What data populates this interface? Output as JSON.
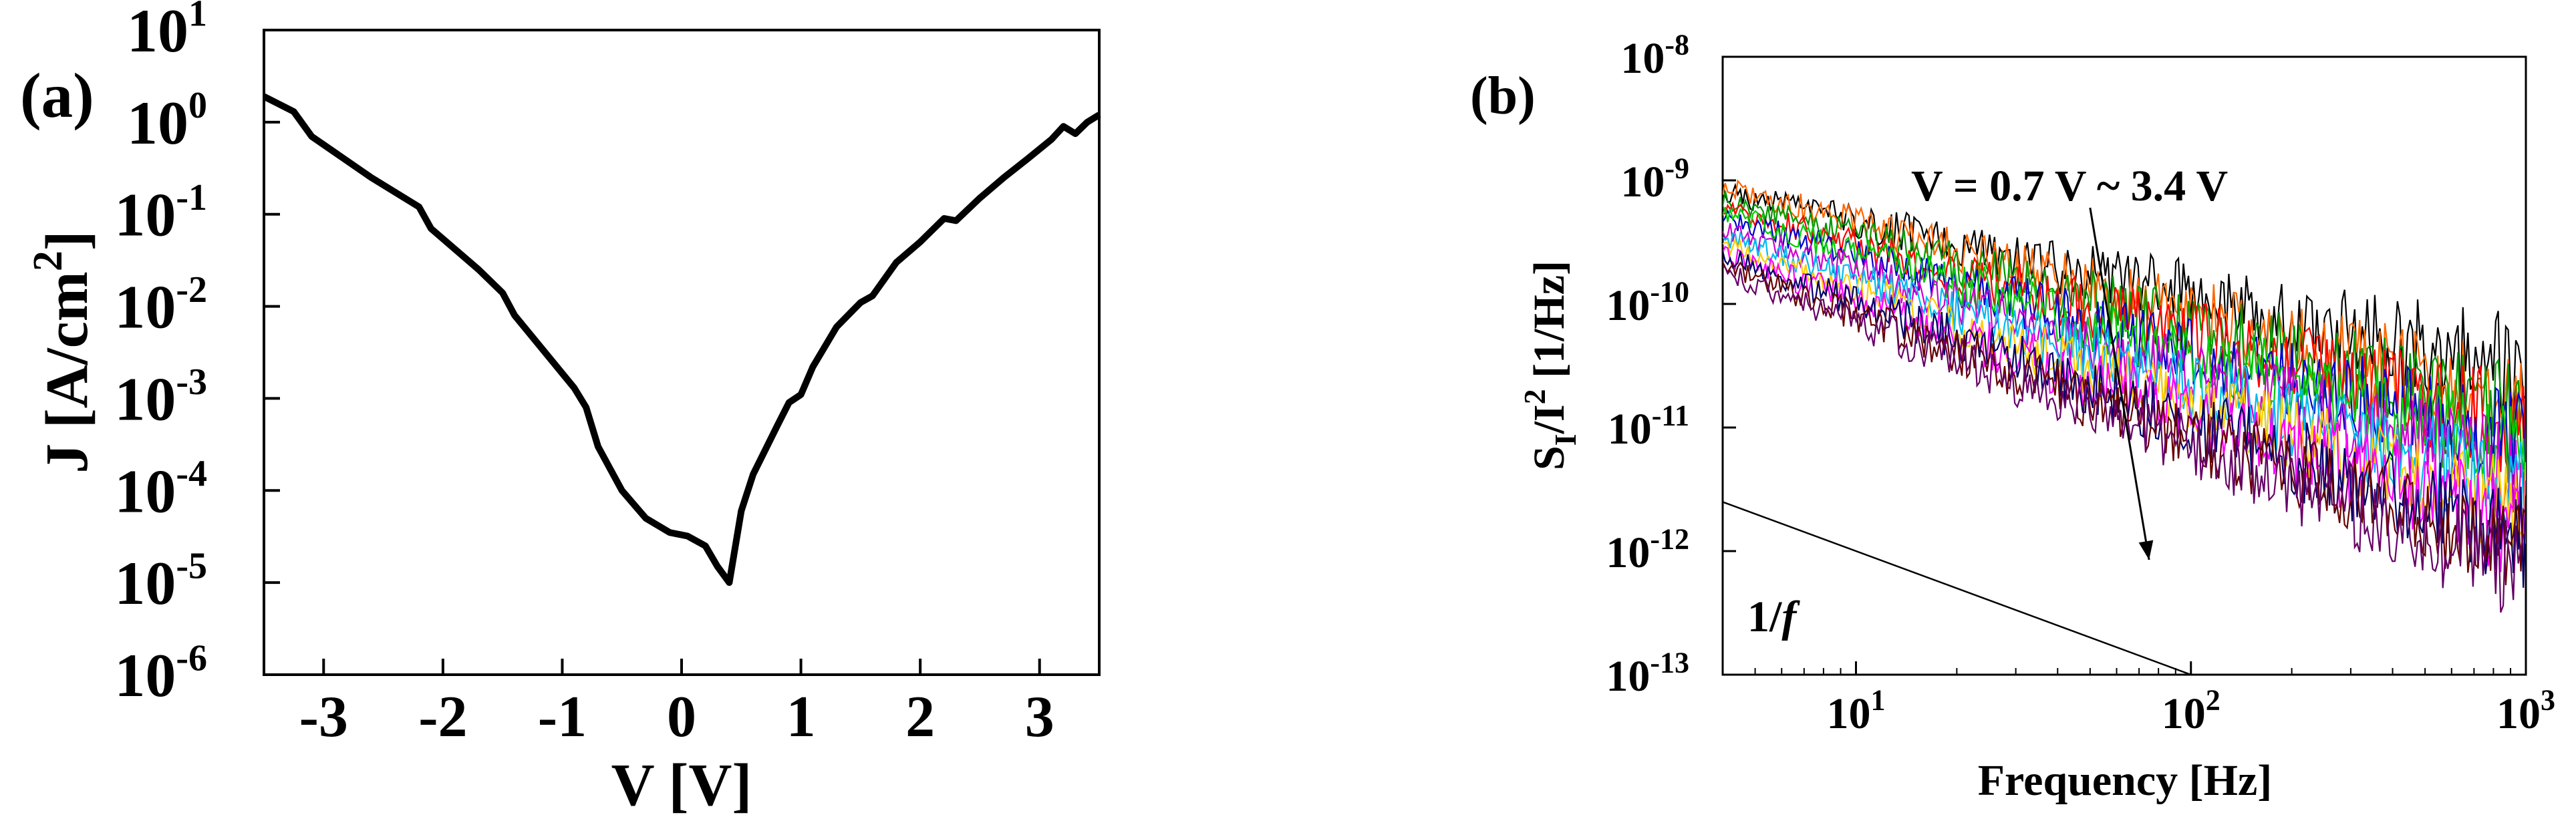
{
  "panels": {
    "a": {
      "label": "(a)"
    },
    "b": {
      "label": "(b)"
    }
  },
  "chart_data": [
    {
      "id": "a",
      "type": "line",
      "title": "",
      "xlabel": "V [V]",
      "ylabel_main": "J [A/cm",
      "ylabel_sup": "2",
      "ylabel_end": "]",
      "xlim": [
        -3.5,
        3.5
      ],
      "ylim_log10": [
        -6,
        1
      ],
      "yscale": "log",
      "x_ticks": [
        {
          "v": -3,
          "t": "-3"
        },
        {
          "v": -2,
          "t": "-2"
        },
        {
          "v": -1,
          "t": "-1"
        },
        {
          "v": 0,
          "t": "0"
        },
        {
          "v": 1,
          "t": "1"
        },
        {
          "v": 2,
          "t": "2"
        },
        {
          "v": 3,
          "t": "3"
        }
      ],
      "y_ticks": [
        {
          "e": 1,
          "base": "10",
          "exp": "1"
        },
        {
          "e": 0,
          "base": "10",
          "exp": "0"
        },
        {
          "e": -1,
          "base": "10",
          "exp": "-1"
        },
        {
          "e": -2,
          "base": "10",
          "exp": "-2"
        },
        {
          "e": -3,
          "base": "10",
          "exp": "-3"
        },
        {
          "e": -4,
          "base": "10",
          "exp": "-4"
        },
        {
          "e": -5,
          "base": "10",
          "exp": "-5"
        },
        {
          "e": -6,
          "base": "10",
          "exp": "-6"
        }
      ],
      "series": [
        {
          "color": "#000000",
          "x": [
            -3.5,
            -3.25,
            -3.1,
            -2.6,
            -2.2,
            -2.1,
            -1.7,
            -1.5,
            -1.4,
            -0.9,
            -0.8,
            -0.7,
            -0.5,
            -0.3,
            -0.1,
            0.05,
            0.2,
            0.3,
            0.4,
            0.5,
            0.6,
            0.8,
            0.9,
            1.0,
            1.1,
            1.3,
            1.5,
            1.6,
            1.8,
            2.0,
            2.2,
            2.3,
            2.5,
            2.7,
            2.9,
            3.1,
            3.2,
            3.3,
            3.4,
            3.5
          ],
          "y": [
            1.9,
            1.3,
            0.7,
            0.25,
            0.12,
            0.07,
            0.025,
            0.014,
            0.008,
            0.0013,
            0.0008,
            0.0003,
            0.0001,
            5e-05,
            3.5e-05,
            3.2e-05,
            2.5e-05,
            1.5e-05,
            1e-05,
            6e-05,
            0.00015,
            0.0005,
            0.0009,
            0.0011,
            0.0022,
            0.006,
            0.011,
            0.013,
            0.03,
            0.05,
            0.09,
            0.085,
            0.15,
            0.25,
            0.4,
            0.65,
            0.9,
            0.75,
            1.0,
            1.2
          ]
        }
      ]
    },
    {
      "id": "b",
      "type": "line",
      "title": "",
      "xlabel": "Frequency [Hz]",
      "ylabel_parts": [
        "S",
        "I",
        "/I",
        "2",
        " [1/Hz]"
      ],
      "xscale": "log",
      "yscale": "log",
      "xlim": [
        4,
        1000
      ],
      "ylim_log10": [
        -13,
        -8
      ],
      "x_ticks": [
        {
          "e": 1,
          "base": "10",
          "exp": "1"
        },
        {
          "e": 2,
          "base": "10",
          "exp": "2"
        },
        {
          "e": 3,
          "base": "10",
          "exp": "3"
        }
      ],
      "y_ticks": [
        {
          "e": -8,
          "base": "10",
          "exp": "-8"
        },
        {
          "e": -9,
          "base": "10",
          "exp": "-9"
        },
        {
          "e": -10,
          "base": "10",
          "exp": "-10"
        },
        {
          "e": -11,
          "base": "10",
          "exp": "-11"
        },
        {
          "e": -12,
          "base": "10",
          "exp": "-12"
        },
        {
          "e": -13,
          "base": "10",
          "exp": "-13"
        }
      ],
      "annotation_voltage": "V = 0.7 V ~ 3.4 V",
      "annotation_slope": {
        "pre": "1/",
        "italic": "f"
      },
      "reference_line": {
        "x": [
          4,
          100
        ],
        "y": [
          2.5e-12,
          1e-13
        ]
      },
      "arrow": {
        "from": [
          50,
          6e-10
        ],
        "to": [
          75,
          8.5e-13
        ]
      },
      "series": [
        {
          "color": "#000000",
          "start": 8e-10,
          "end": 3e-11,
          "seed": 11
        },
        {
          "color": "#ff6600",
          "start": 9e-10,
          "end": 1.5e-11,
          "seed": 12
        },
        {
          "color": "#009900",
          "start": 7e-10,
          "end": 1.2e-11,
          "seed": 13
        },
        {
          "color": "#ff0000",
          "start": 6e-10,
          "end": 1e-11,
          "seed": 14
        },
        {
          "color": "#0000cc",
          "start": 5e-10,
          "end": 7e-12,
          "seed": 15
        },
        {
          "color": "#00cc00",
          "start": 5.5e-10,
          "end": 6e-12,
          "seed": 16
        },
        {
          "color": "#cc00cc",
          "start": 4e-10,
          "end": 4e-12,
          "seed": 17
        },
        {
          "color": "#00bbee",
          "start": 3.5e-10,
          "end": 3e-12,
          "seed": 18
        },
        {
          "color": "#ffcc00",
          "start": 3e-10,
          "end": 2e-12,
          "seed": 19
        },
        {
          "color": "#ff00ff",
          "start": 2.5e-10,
          "end": 1.5e-12,
          "seed": 20
        },
        {
          "color": "#000066",
          "start": 2.5e-10,
          "end": 1.2e-12,
          "seed": 21
        },
        {
          "color": "#660000",
          "start": 2e-10,
          "end": 9e-13,
          "seed": 22
        },
        {
          "color": "#660066",
          "start": 1.8e-10,
          "end": 7e-13,
          "seed": 23
        }
      ]
    }
  ]
}
